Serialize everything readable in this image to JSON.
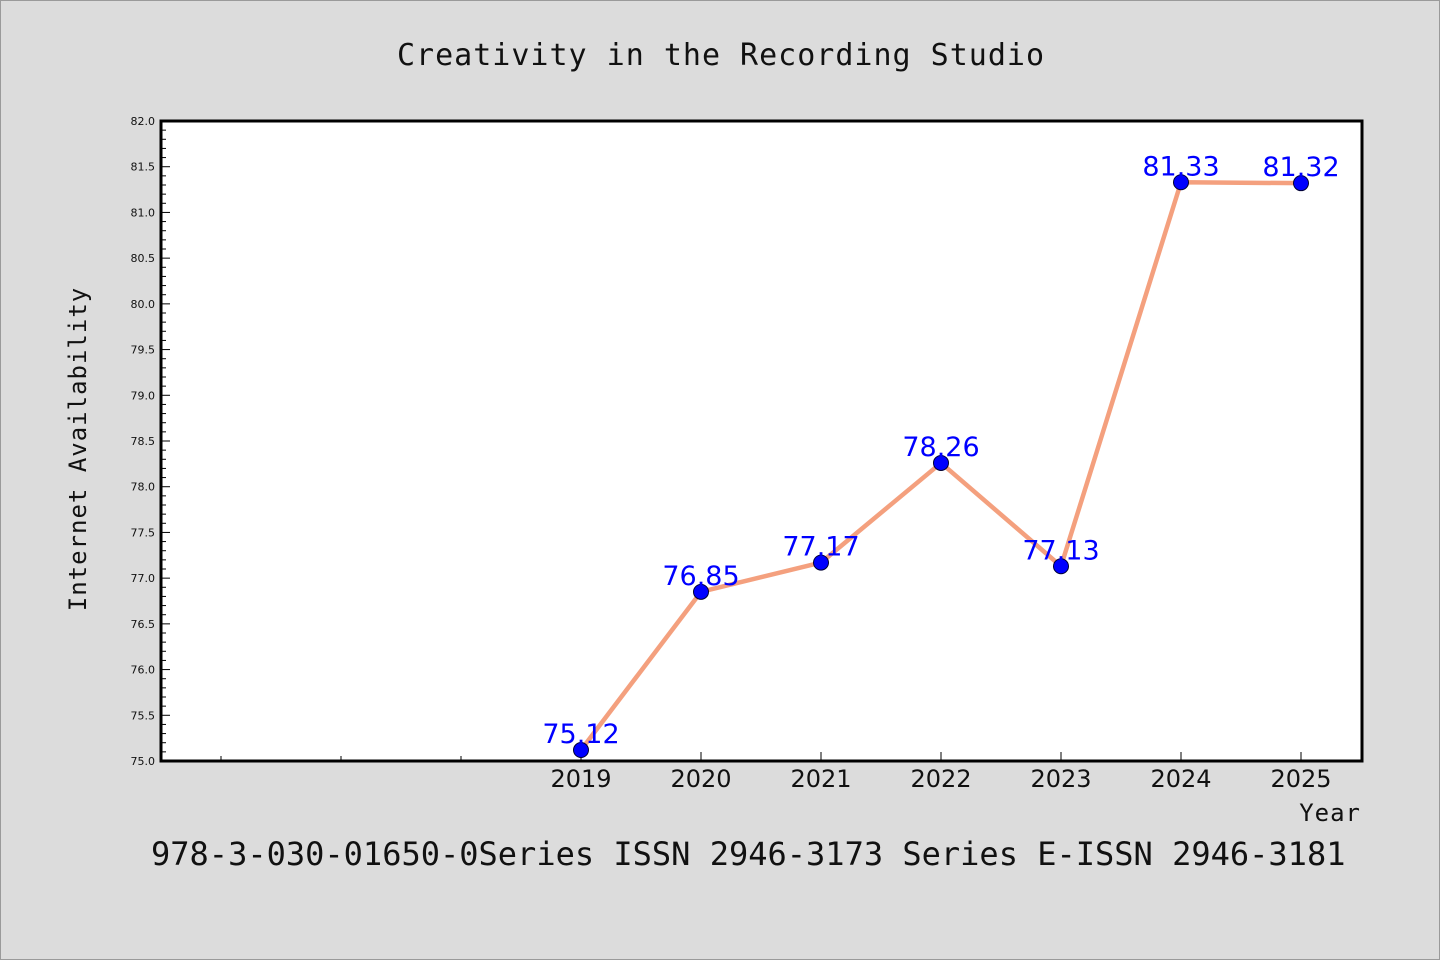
{
  "chart_data": {
    "type": "line",
    "title": "Creativity in the Recording Studio",
    "xlabel": "Year",
    "ylabel": "Internet Availability",
    "categories": [
      "2019",
      "2020",
      "2021",
      "2022",
      "2023",
      "2024",
      "2025"
    ],
    "series": [
      {
        "values": [
          75.12,
          76.85,
          77.17,
          78.26,
          77.13,
          81.33,
          81.32
        ]
      }
    ],
    "data_labels": [
      "75.12",
      "76.85",
      "77.17",
      "78.26",
      "77.13",
      "81.33",
      "81.32"
    ],
    "ylim": [
      75.0,
      82.0
    ],
    "yticks": [
      "75.0",
      "75.5",
      "76.0",
      "76.5",
      "77.0",
      "77.5",
      "78.0",
      "78.5",
      "79.0",
      "79.5",
      "80.0",
      "80.5",
      "81.0",
      "81.5",
      "82.0"
    ],
    "grid": false,
    "line_color": "#f4a07e",
    "marker_color": "#0000ff",
    "label_color": "#0000ff",
    "background": "#dcdcdc",
    "plot_background": "#ffffff"
  },
  "footer": {
    "text": "978-3-030-01650-0Series ISSN 2946-3173 Series E-ISSN 2946-3181"
  }
}
